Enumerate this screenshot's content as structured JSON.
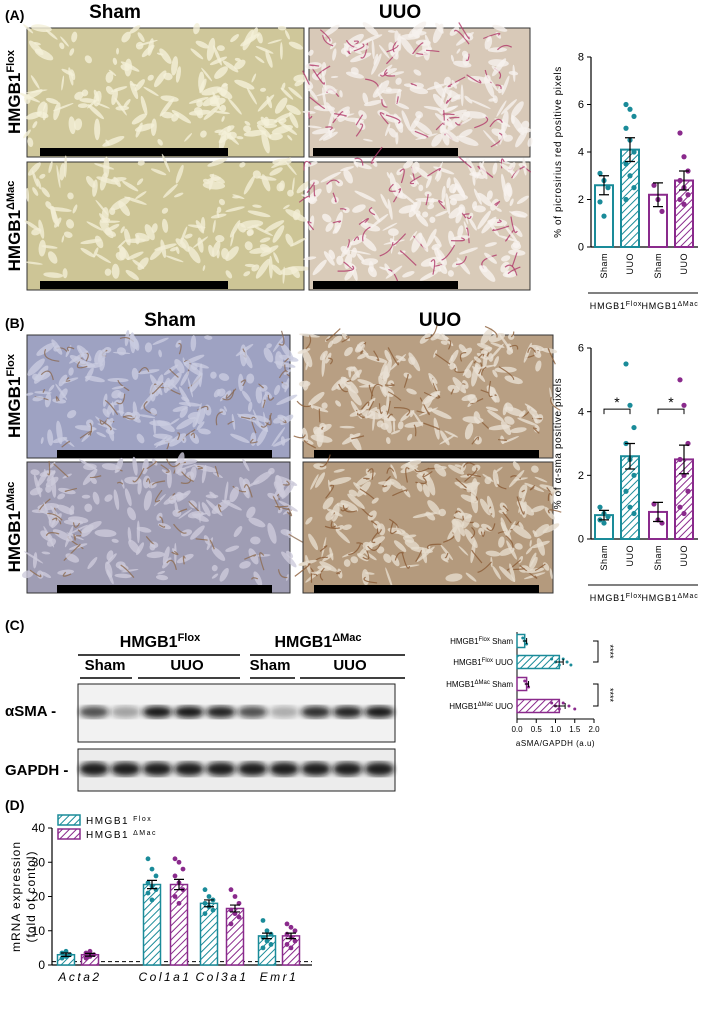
{
  "panels": [
    {
      "label": "(A)",
      "columns": [
        "Sham",
        "UUO"
      ],
      "rows": [
        {
          "text": "HMGB1",
          "sup": "Flox"
        },
        {
          "text": "HMGB1",
          "sup": "ΔMac"
        }
      ]
    },
    {
      "label": "(B)",
      "columns": [
        "Sham",
        "UUO"
      ],
      "rows": [
        {
          "text": "HMGB1",
          "sup": "Flox"
        },
        {
          "text": "HMGB1",
          "sup": "ΔMac"
        }
      ]
    },
    {
      "label": "(C)",
      "groups": [
        {
          "text": "HMGB1",
          "sup": "Flox"
        },
        {
          "text": "HMGB1",
          "sup": "ΔMac"
        }
      ],
      "lanes": [
        "Sham",
        "UUO",
        "Sham",
        "UUO"
      ],
      "bands": [
        "αSMA -",
        "GAPDH -"
      ]
    },
    {
      "label": "(D)"
    }
  ],
  "chart_data": [
    {
      "type": "bar",
      "ylabel": "% of picrosirius red positive pixels",
      "categories": [
        "Sham",
        "UUO",
        "Sham",
        "UUO"
      ],
      "groups": [
        {
          "text": "HMGB1",
          "sup": "Flox"
        },
        {
          "text": "HMGB1",
          "sup": "ΔMac"
        }
      ],
      "values": [
        2.6,
        4.1,
        2.2,
        2.8
      ],
      "errors": [
        0.4,
        0.5,
        0.5,
        0.4
      ],
      "points": [
        [
          3.1,
          2.8,
          2.5,
          1.9,
          1.3
        ],
        [
          6.0,
          5.8,
          5.5,
          5.0,
          4.5,
          4.0,
          3.5,
          3.0,
          2.5,
          2.0
        ],
        [
          2.6,
          2.0,
          1.5
        ],
        [
          4.8,
          3.8,
          3.2,
          2.8,
          2.5,
          2.2,
          2.0,
          1.8
        ]
      ],
      "colors": [
        "#1a8b99",
        "#1a8b99",
        "#8a2a8c",
        "#8a2a8c"
      ],
      "hatched": [
        false,
        true,
        false,
        true
      ],
      "ylim": [
        0,
        8
      ],
      "yticks": [
        0,
        2,
        4,
        6,
        8
      ]
    },
    {
      "type": "bar",
      "ylabel": "% of α-sma positive pixels",
      "categories": [
        "Sham",
        "UUO",
        "Sham",
        "UUO"
      ],
      "groups": [
        {
          "text": "HMGB1",
          "sup": "Flox"
        },
        {
          "text": "HMGB1",
          "sup": "ΔMac"
        }
      ],
      "values": [
        0.75,
        2.6,
        0.85,
        2.5
      ],
      "errors": [
        0.15,
        0.4,
        0.3,
        0.45
      ],
      "points": [
        [
          1.0,
          0.8,
          0.7,
          0.6,
          0.5
        ],
        [
          5.5,
          4.2,
          3.5,
          3.0,
          2.5,
          2.0,
          1.5,
          1.0,
          0.8
        ],
        [
          1.1,
          0.6,
          0.5
        ],
        [
          5.0,
          4.2,
          3.0,
          2.5,
          2.0,
          1.5,
          1.0,
          0.8
        ]
      ],
      "colors": [
        "#1a8b99",
        "#1a8b99",
        "#8a2a8c",
        "#8a2a8c"
      ],
      "hatched": [
        false,
        true,
        false,
        true
      ],
      "significance": [
        "*",
        "*"
      ],
      "ylim": [
        0,
        6
      ],
      "yticks": [
        0,
        2,
        4,
        6
      ]
    },
    {
      "type": "bar",
      "orientation": "horizontal",
      "xlabel": "aSMA/GAPDH (a.u)",
      "categories": [
        {
          "text": "HMGB1",
          "sup": "Flox",
          "label": "Sham"
        },
        {
          "text": "HMGB1",
          "sup": "Flox",
          "label": "UUO"
        },
        {
          "text": "HMGB1",
          "sup": "ΔMac",
          "label": "Sham"
        },
        {
          "text": "HMGB1",
          "sup": "ΔMac",
          "label": "UUO"
        }
      ],
      "values": [
        0.2,
        1.1,
        0.25,
        1.1
      ],
      "errors": [
        0.05,
        0.1,
        0.05,
        0.15
      ],
      "points": [
        [
          0.15,
          0.2,
          0.25
        ],
        [
          0.9,
          1.0,
          1.1,
          1.2,
          1.3,
          1.4
        ],
        [
          0.2,
          0.25,
          0.3
        ],
        [
          0.9,
          1.0,
          1.1,
          1.2,
          1.35,
          1.5
        ]
      ],
      "colors": [
        "#1a8b99",
        "#1a8b99",
        "#8a2a8c",
        "#8a2a8c"
      ],
      "hatched": [
        false,
        true,
        false,
        true
      ],
      "significance": [
        "****",
        "****"
      ],
      "xlim": [
        0,
        2
      ],
      "xticks": [
        {
          "value": 0,
          "label": "0.0"
        },
        0.5,
        {
          "value": 1,
          "label": "1.0"
        },
        1.5,
        {
          "value": 2,
          "label": "2.0"
        }
      ]
    },
    {
      "type": "bar",
      "ylabel": [
        "mRNA expression",
        "(fold of contol)"
      ],
      "categories": [
        "Acta2",
        "Col1a1",
        "Col3a1",
        "Emr1"
      ],
      "series": [
        {
          "name": "HMGB1",
          "name_sup": "Flox",
          "color": "#1a8b99",
          "values": [
            3,
            23.5,
            18,
            8.5
          ],
          "errors": [
            0.5,
            1.2,
            1.0,
            0.8
          ],
          "points": [
            [
              2,
              2.5,
              3,
              3.5,
              4
            ],
            [
              31,
              28,
              26,
              24,
              23,
              22,
              21,
              19
            ],
            [
              22,
              20,
              19,
              18,
              17,
              16,
              15
            ],
            [
              13,
              10,
              9,
              8,
              7,
              6,
              5
            ]
          ]
        },
        {
          "name": "HMGB1",
          "name_sup": "ΔMac",
          "color": "#8a2a8c",
          "values": [
            3,
            23.5,
            16.5,
            8.5
          ],
          "errors": [
            0.4,
            1.5,
            1.0,
            0.8
          ],
          "points": [
            [
              2,
              2.5,
              3,
              3.5,
              4
            ],
            [
              31,
              30,
              28,
              26,
              24,
              22,
              20,
              18
            ],
            [
              22,
              20,
              18,
              16,
              15,
              14,
              12
            ],
            [
              12,
              11,
              10,
              9,
              8,
              7,
              6,
              5
            ]
          ]
        }
      ],
      "reference_line": 1,
      "ylim": [
        0,
        40
      ],
      "yticks": [
        0,
        10,
        20,
        30,
        40
      ]
    }
  ]
}
